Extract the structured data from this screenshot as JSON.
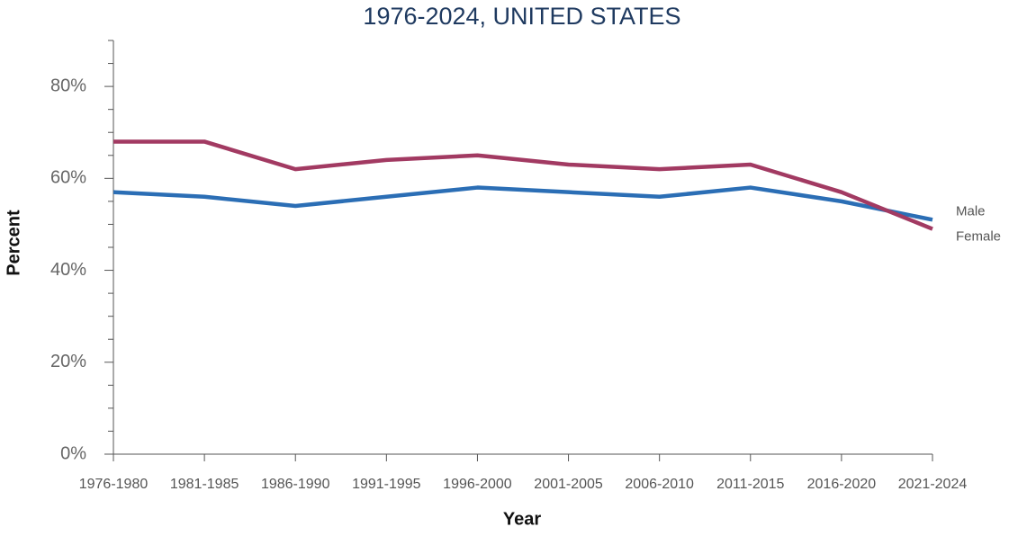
{
  "chart_data": {
    "type": "line",
    "title": "1976-2024, UNITED STATES",
    "x_label": "Year",
    "y_label": "Percent",
    "categories": [
      "1976-1980",
      "1981-1985",
      "1986-1990",
      "1991-1995",
      "1996-2000",
      "2001-2005",
      "2006-2010",
      "2011-2015",
      "2016-2020",
      "2021-2024"
    ],
    "series": [
      {
        "name": "Male",
        "color": "#2b6eb5",
        "values": [
          57,
          56,
          54,
          56,
          58,
          57,
          56,
          58,
          55,
          51
        ]
      },
      {
        "name": "Female",
        "color": "#a23a62",
        "values": [
          68,
          68,
          62,
          64,
          65,
          63,
          62,
          63,
          57,
          49
        ]
      }
    ],
    "ylim": [
      0,
      90
    ],
    "yticks": [
      {
        "value": 0,
        "label": "0%"
      },
      {
        "value": 20,
        "label": "20%"
      },
      {
        "value": 40,
        "label": "40%"
      },
      {
        "value": 60,
        "label": "60%"
      },
      {
        "value": 80,
        "label": "80%"
      }
    ],
    "minor_yticks": [
      5,
      10,
      15,
      25,
      30,
      35,
      45,
      50,
      55,
      65,
      70,
      75,
      85,
      90
    ],
    "legend": "end-labels"
  }
}
